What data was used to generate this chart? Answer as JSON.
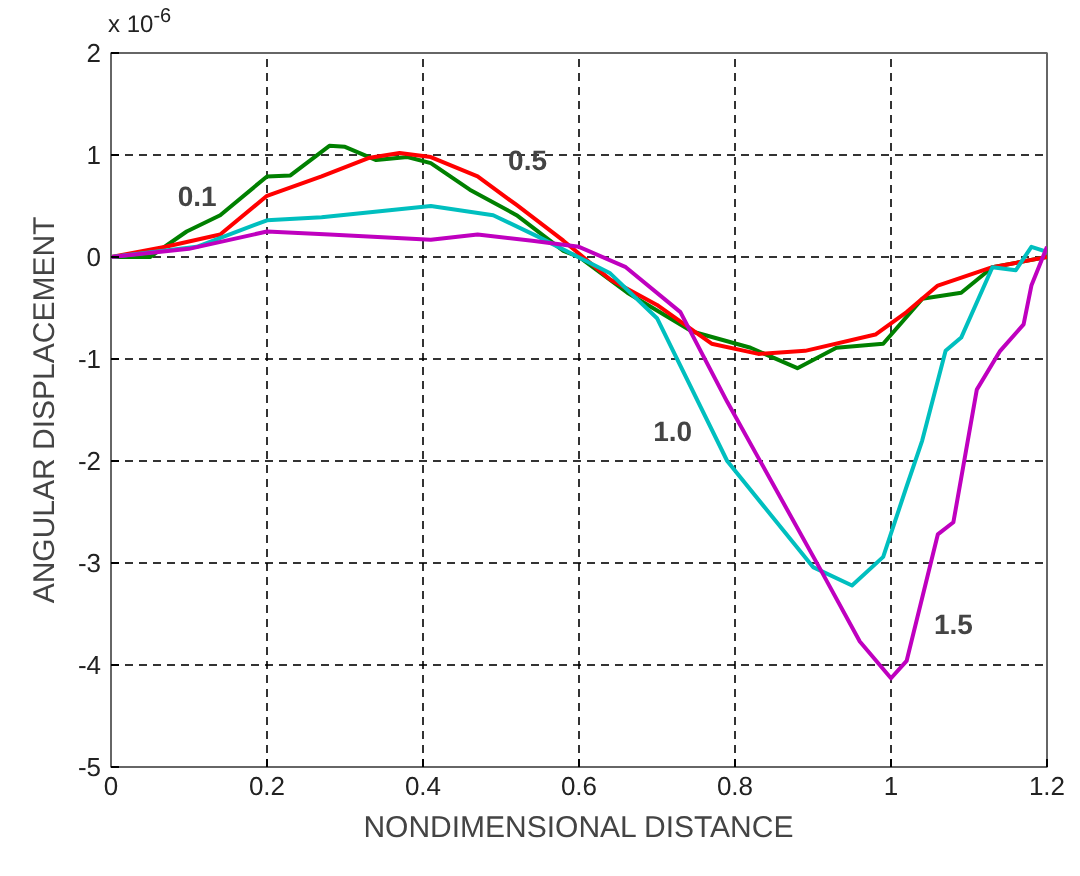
{
  "chart_data": {
    "type": "line",
    "xlabel": "NONDIMENSIONAL DISTANCE",
    "ylabel": "ANGULAR DISPLACEMENT",
    "xlim": [
      0,
      1.2
    ],
    "ylim": [
      -5,
      2
    ],
    "xticks": [
      0,
      0.2,
      0.4,
      0.6,
      0.8,
      1,
      1.2
    ],
    "yticks": [
      -5,
      -4,
      -3,
      -2,
      -1,
      0,
      1,
      2
    ],
    "grid": true,
    "line_style": "solid",
    "series": [
      {
        "color": "#008000",
        "x": [
          0,
          0.05,
          0.097,
          0.14,
          0.2,
          0.23,
          0.28,
          0.3,
          0.34,
          0.38,
          0.41,
          0.46,
          0.52,
          0.58,
          0.6,
          0.662,
          0.745,
          0.82,
          0.88,
          0.93,
          0.99,
          1.04,
          1.09,
          1.13,
          1.2
        ],
        "values": [
          0,
          0,
          0.25,
          0.41,
          0.79,
          0.8,
          1.09,
          1.08,
          0.95,
          0.98,
          0.92,
          0.66,
          0.41,
          0.06,
          0,
          -0.35,
          -0.73,
          -0.89,
          -1.09,
          -0.89,
          -0.85,
          -0.41,
          -0.35,
          -0.1,
          0
        ]
      },
      {
        "color": "#ff0000",
        "x": [
          0,
          0.07,
          0.14,
          0.2,
          0.27,
          0.33,
          0.37,
          0.41,
          0.47,
          0.52,
          0.58,
          0.64,
          0.7,
          0.77,
          0.83,
          0.89,
          0.98,
          1.02,
          1.06,
          1.13,
          1.2
        ],
        "values": [
          0,
          0.1,
          0.22,
          0.6,
          0.79,
          0.97,
          1.02,
          0.98,
          0.79,
          0.51,
          0.16,
          -0.22,
          -0.47,
          -0.85,
          -0.95,
          -0.92,
          -0.76,
          -0.54,
          -0.28,
          -0.1,
          0
        ]
      },
      {
        "color": "#00bfbf",
        "x": [
          0,
          0.11,
          0.2,
          0.27,
          0.41,
          0.49,
          0.55,
          0.64,
          0.7,
          0.79,
          0.9,
          0.95,
          0.99,
          1.02,
          1.04,
          1.07,
          1.09,
          1.13,
          1.16,
          1.18,
          1.2
        ],
        "values": [
          0,
          0.1,
          0.36,
          0.39,
          0.5,
          0.41,
          0.19,
          -0.16,
          -0.6,
          -2.0,
          -3.04,
          -3.22,
          -2.94,
          -2.25,
          -1.8,
          -0.92,
          -0.79,
          -0.1,
          -0.13,
          0.1,
          0.05
        ]
      },
      {
        "color": "#bf00bf",
        "x": [
          0,
          0.1,
          0.2,
          0.28,
          0.41,
          0.47,
          0.54,
          0.6,
          0.66,
          0.73,
          0.79,
          0.91,
          0.96,
          1.0,
          1.02,
          1.06,
          1.08,
          1.11,
          1.14,
          1.17,
          1.18,
          1.2
        ],
        "values": [
          0,
          0.08,
          0.25,
          0.22,
          0.17,
          0.22,
          0.16,
          0.1,
          -0.1,
          -0.54,
          -1.42,
          -3.07,
          -3.77,
          -4.13,
          -3.96,
          -2.72,
          -2.6,
          -1.3,
          -0.92,
          -0.66,
          -0.28,
          0.1
        ]
      }
    ],
    "annotations": [
      "0.1",
      "0.5",
      "1.0",
      "1.5",
      "x 10$^{-6}$"
    ]
  }
}
